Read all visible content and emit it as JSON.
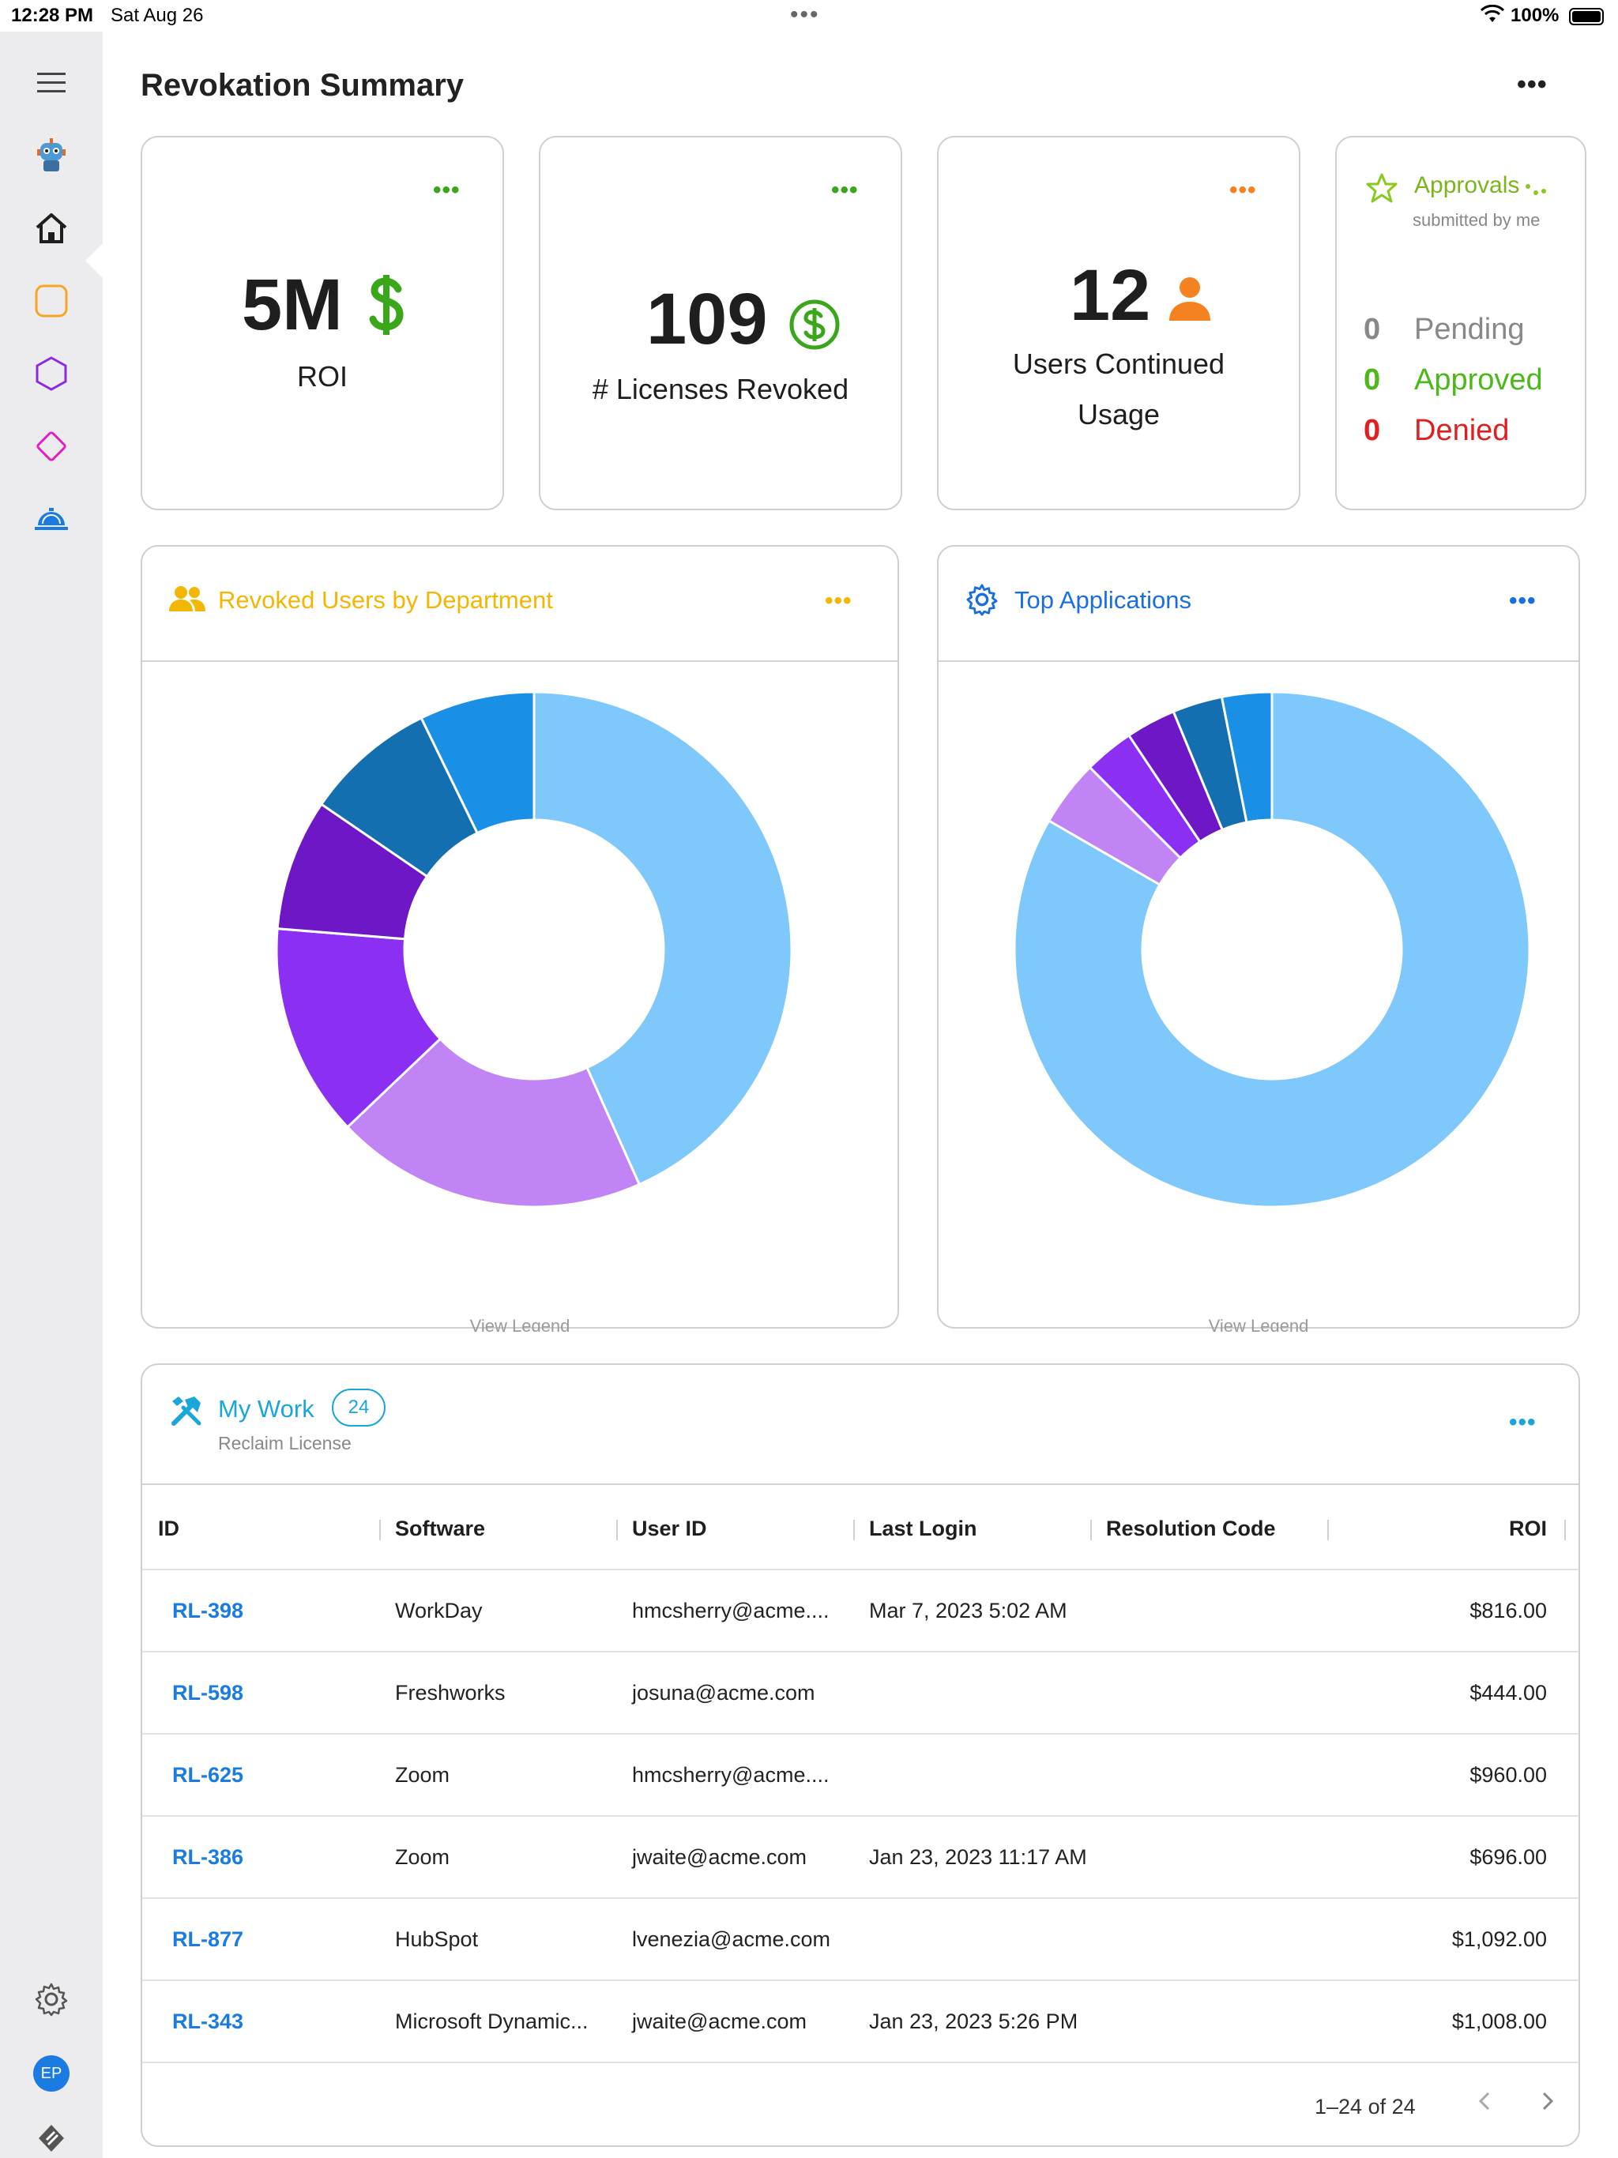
{
  "status_bar": {
    "time": "12:28 PM",
    "date": "Sat Aug 26",
    "battery": "100%"
  },
  "page": {
    "title": "Revokation Summary"
  },
  "kpis": {
    "roi": {
      "value": "5M",
      "label": "ROI"
    },
    "licenses": {
      "value": "109",
      "label": "# Licenses Revoked"
    },
    "users": {
      "value": "12",
      "label_line1": "Users Continued",
      "label_line2": "Usage"
    }
  },
  "approvals": {
    "title": "Approvals",
    "subtitle": "submitted by me",
    "rows": [
      {
        "count": "0",
        "label": "Pending",
        "color": "#888888"
      },
      {
        "count": "0",
        "label": "Approved",
        "color": "#4cb81a"
      },
      {
        "count": "0",
        "label": "Denied",
        "color": "#e02020"
      }
    ]
  },
  "colors": {
    "green": "#3aa61a",
    "orange": "#f58220",
    "yellow": "#f2b705",
    "blue": "#1a6fe0",
    "cyan": "#1aa6d9",
    "accent_link": "#1a7ce0"
  },
  "chart_data": [
    {
      "type": "pie",
      "title": "Revoked Users by Department",
      "legend_link": "View Legend",
      "values": [
        42,
        19,
        13,
        8,
        8,
        7
      ],
      "colors": [
        "#7ec8fb",
        "#c084f5",
        "#8b2ff2",
        "#6e17c6",
        "#136fb0",
        "#1a8fe6"
      ]
    },
    {
      "type": "pie",
      "title": "Top Applications",
      "legend_link": "View Legend",
      "values": [
        80,
        4,
        3,
        3,
        3,
        3
      ],
      "colors": [
        "#7ec8fb",
        "#c084f5",
        "#8b2ff2",
        "#6e17c6",
        "#136fb0",
        "#1a8fe6"
      ]
    }
  ],
  "my_work": {
    "title": "My Work",
    "count": "24",
    "subtitle": "Reclaim License",
    "columns": [
      "ID",
      "Software",
      "User ID",
      "Last Login",
      "Resolution Code",
      "ROI"
    ],
    "rows": [
      {
        "id": "RL-398",
        "software": "WorkDay",
        "user": "hmcsherry@acme....",
        "login": "Mar 7, 2023 5:02 AM",
        "code": "",
        "roi": "$816.00"
      },
      {
        "id": "RL-598",
        "software": "Freshworks",
        "user": "josuna@acme.com",
        "login": "",
        "code": "",
        "roi": "$444.00"
      },
      {
        "id": "RL-625",
        "software": "Zoom",
        "user": "hmcsherry@acme....",
        "login": "",
        "code": "",
        "roi": "$960.00"
      },
      {
        "id": "RL-386",
        "software": "Zoom",
        "user": "jwaite@acme.com",
        "login": "Jan 23, 2023 11:17 AM",
        "code": "",
        "roi": "$696.00"
      },
      {
        "id": "RL-877",
        "software": "HubSpot",
        "user": "lvenezia@acme.com",
        "login": "",
        "code": "",
        "roi": "$1,092.00"
      },
      {
        "id": "RL-343",
        "software": "Microsoft Dynamic...",
        "user": "jwaite@acme.com",
        "login": "Jan 23, 2023 5:26 PM",
        "code": "",
        "roi": "$1,008.00"
      }
    ],
    "pagination": "1–24 of 24"
  }
}
